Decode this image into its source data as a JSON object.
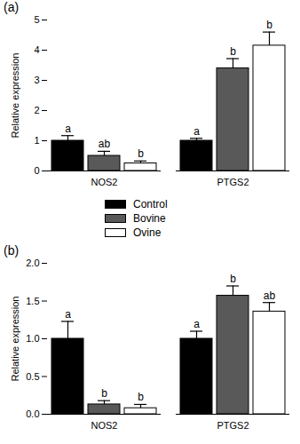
{
  "chart_data": [
    {
      "type": "bar",
      "title": "(a)",
      "y_label": "Relative expression",
      "categories": [
        "NOS2",
        "PTGS2"
      ],
      "series": [
        {
          "name": "Control",
          "color": "#000000",
          "values": [
            1.0,
            1.0
          ],
          "errors": [
            0.17,
            0.08
          ],
          "letters": [
            "a",
            "a"
          ]
        },
        {
          "name": "Bovine",
          "color": "#595959",
          "values": [
            0.5,
            3.4
          ],
          "errors": [
            0.15,
            0.32
          ],
          "letters": [
            "ab",
            "b"
          ]
        },
        {
          "name": "Ovine",
          "color": "#ffffff",
          "values": [
            0.25,
            4.15
          ],
          "errors": [
            0.08,
            0.45
          ],
          "letters": [
            "b",
            "b"
          ]
        }
      ],
      "ylim": [
        0,
        5
      ],
      "yticks": [
        0,
        1,
        2,
        3,
        4,
        5
      ],
      "legend": "bottom"
    },
    {
      "type": "bar",
      "title": "(b)",
      "y_label": "Relative expression",
      "categories": [
        "NOS2",
        "PTGS2"
      ],
      "series": [
        {
          "name": "Control",
          "color": "#000000",
          "values": [
            1.0,
            1.0
          ],
          "errors": [
            0.23,
            0.1
          ],
          "letters": [
            "a",
            "a"
          ]
        },
        {
          "name": "Bovine",
          "color": "#595959",
          "values": [
            0.13,
            1.57
          ],
          "errors": [
            0.05,
            0.13
          ],
          "letters": [
            "b",
            "b"
          ]
        },
        {
          "name": "Ovine",
          "color": "#ffffff",
          "values": [
            0.08,
            1.36
          ],
          "errors": [
            0.05,
            0.12
          ],
          "letters": [
            "b",
            "ab"
          ]
        }
      ],
      "ylim": [
        0,
        2
      ],
      "yticks": [
        {
          "value": 0,
          "label": "0.0"
        },
        {
          "value": 0.5,
          "label": "0.5"
        },
        {
          "value": 1,
          "label": "1.0"
        },
        {
          "value": 1.5,
          "label": "1.5"
        },
        {
          "value": 2,
          "label": "2.0"
        }
      ]
    }
  ]
}
